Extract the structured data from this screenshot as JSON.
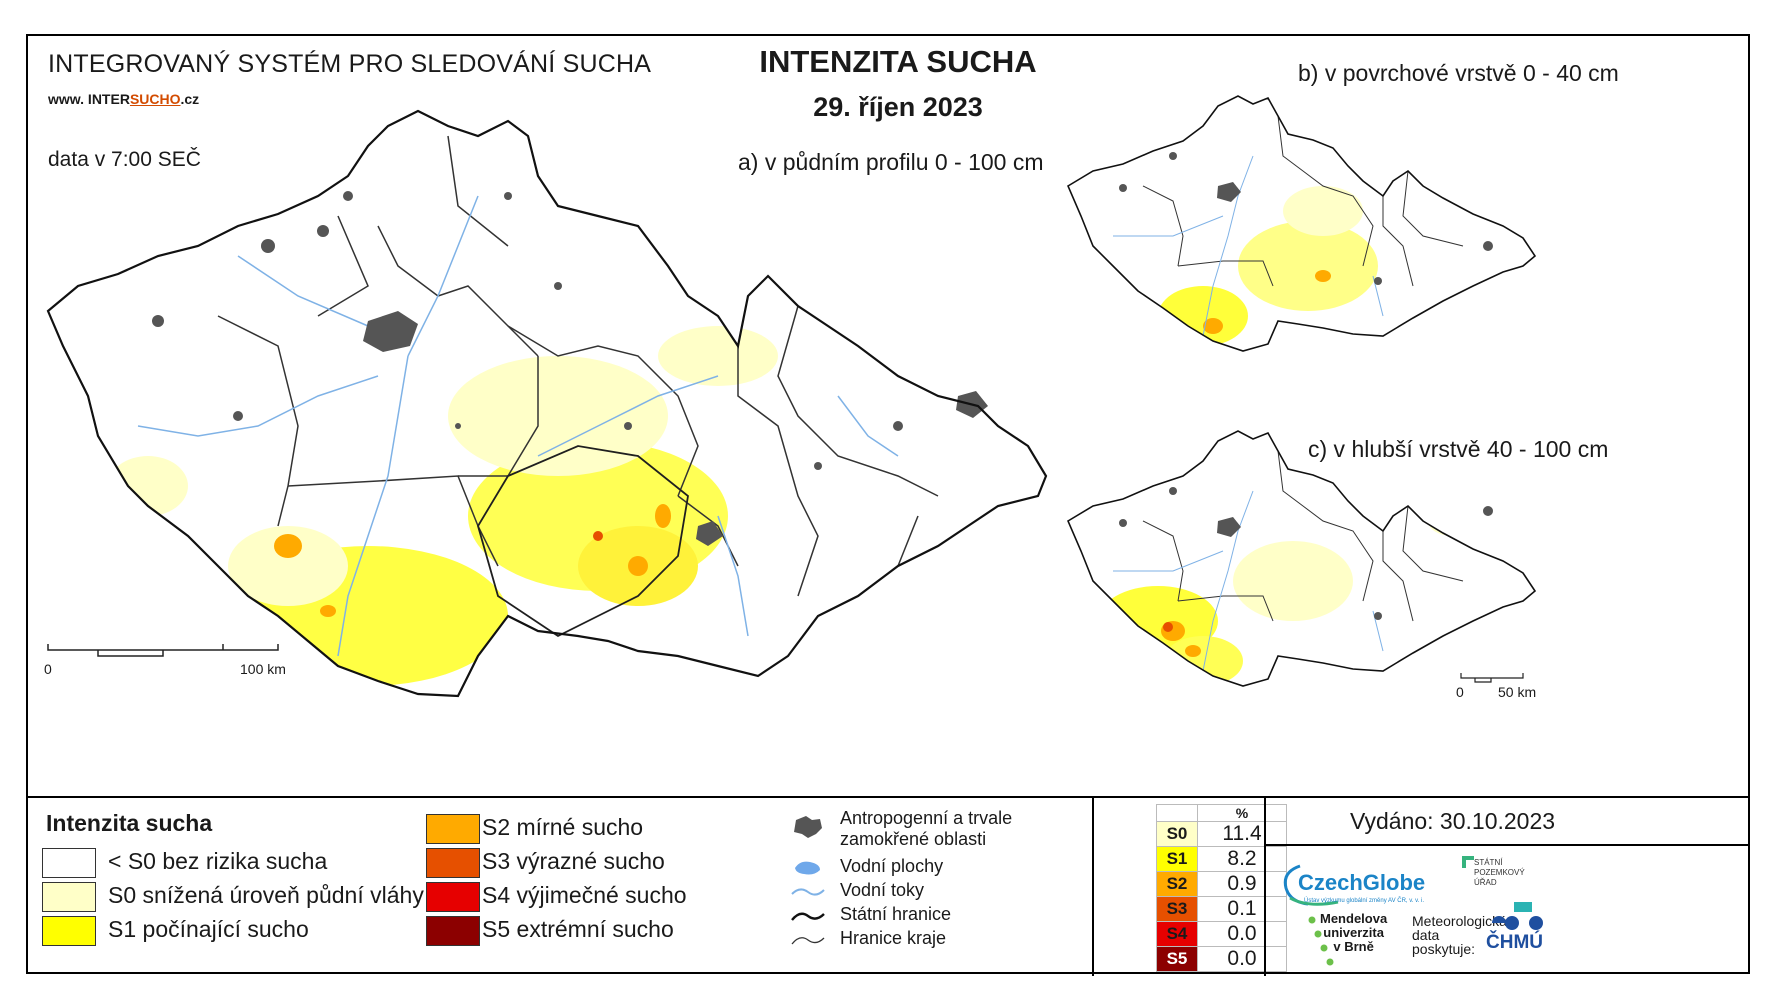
{
  "header": {
    "system_title": "INTEGROVANÝ SYSTÉM PRO SLEDOVÁNÍ SUCHA",
    "url_prefix": "www. INTER",
    "url_highlight": "SUCHO",
    "url_suffix": ".cz",
    "data_time": "data v 7:00 SEČ",
    "main_title": "INTENZITA SUCHA",
    "date": "29. říjen 2023"
  },
  "maps": {
    "a_label": "a) v půdním profilu 0 - 100 cm",
    "b_label": "b) v povrchové vrstvě 0 - 40 cm",
    "c_label": "c) v hlubší vrstvě 40 - 100 cm",
    "scale_a": {
      "start": "0",
      "end": "100 km"
    },
    "scale_c": {
      "start": "0",
      "end": "50 km"
    }
  },
  "legend": {
    "title": "Intenzita sucha",
    "classes": [
      {
        "label": "< S0 bez rizika sucha",
        "color": "#ffffff"
      },
      {
        "label": "S0 snížená úroveň půdní vláhy",
        "color": "#ffffc8"
      },
      {
        "label": "S1 počínající sucho",
        "color": "#ffff00"
      },
      {
        "label": "S2 mírné sucho",
        "color": "#ffaa00"
      },
      {
        "label": "S3 výrazné sucho",
        "color": "#e65000"
      },
      {
        "label": "S4 výjimečné sucho",
        "color": "#e60000"
      },
      {
        "label": "S5 extrémní sucho",
        "color": "#8c0000"
      }
    ],
    "symbols": [
      {
        "label": "Antropogenní a trvale zamokřené oblasti",
        "icon": "urban-area-icon"
      },
      {
        "label": "Vodní plochy",
        "icon": "water-body-icon"
      },
      {
        "label": "Vodní toky",
        "icon": "river-icon"
      },
      {
        "label": "Státní hranice",
        "icon": "state-border-icon"
      },
      {
        "label": "Hranice kraje",
        "icon": "region-border-icon"
      }
    ]
  },
  "percent_table": {
    "header": "%",
    "rows": [
      {
        "code": "S0",
        "value": "11.4",
        "color": "#ffffc8"
      },
      {
        "code": "S1",
        "value": "8.2",
        "color": "#ffff00"
      },
      {
        "code": "S2",
        "value": "0.9",
        "color": "#ffaa00"
      },
      {
        "code": "S3",
        "value": "0.1",
        "color": "#e65000"
      },
      {
        "code": "S4",
        "value": "0.0",
        "color": "#e60000"
      },
      {
        "code": "S5",
        "value": "0.0",
        "color": "#8c0000"
      }
    ]
  },
  "footer": {
    "issued": "Vydáno: 30.10.2023",
    "czechglobe": "CzechGlobe",
    "czechglobe_sub": "Ústav výzkumu globální změny AV ČR, v. v. i.",
    "mendel_line1": "Mendelova",
    "mendel_line2": "univerzita",
    "mendel_line3": "v Brně",
    "meteo_line1": "Meteorologická",
    "meteo_line2": "data",
    "meteo_line3": "poskytuje:",
    "chmu": "ČHMÚ",
    "spu_line1": "STÁTNÍ",
    "spu_line2": "POZEMKOVÝ",
    "spu_line3": "ÚŘAD"
  }
}
